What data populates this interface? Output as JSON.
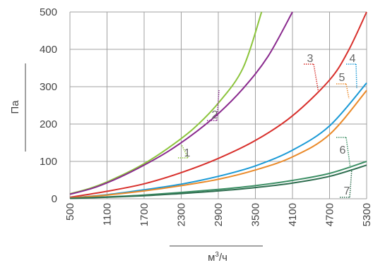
{
  "chart_data": {
    "type": "line",
    "title": "",
    "xlabel": "м³/ч",
    "xlabel_base": "м",
    "xlabel_sup": "3",
    "xlabel_suffix": "/ч",
    "ylabel": "Па",
    "xlim": [
      500,
      5300
    ],
    "ylim": [
      0,
      500
    ],
    "x_ticks": [
      "500",
      "1100",
      "1700",
      "2300",
      "2900",
      "3500",
      "4100",
      "4700",
      "5300"
    ],
    "y_ticks": [
      "0",
      "100",
      "200",
      "300",
      "400",
      "500"
    ],
    "grid": true,
    "colors": {
      "grid": "#a0a0a0",
      "axis_text": "#444444",
      "callout_text": "#666666"
    },
    "series": [
      {
        "name": "1",
        "color": "#8cc43c",
        "x": [
          500,
          900,
          1300,
          1700,
          2100,
          2500,
          2900,
          3300,
          3600
        ],
        "y": [
          13,
          32,
          60,
          94,
          137,
          188,
          256,
          350,
          500
        ]
      },
      {
        "name": "2",
        "color": "#8a2a8e",
        "x": [
          500,
          900,
          1300,
          1700,
          2100,
          2500,
          2900,
          3300,
          3700,
          4100
        ],
        "y": [
          12,
          30,
          57,
          90,
          128,
          174,
          228,
          295,
          380,
          500
        ]
      },
      {
        "name": "3",
        "color": "#d8302c",
        "x": [
          500,
          1100,
          1700,
          2300,
          2900,
          3500,
          4100,
          4700,
          5000,
          5300
        ],
        "y": [
          4,
          20,
          40,
          70,
          108,
          156,
          222,
          318,
          395,
          500
        ]
      },
      {
        "name": "4",
        "color": "#1b9ad6",
        "x": [
          500,
          1100,
          1700,
          2300,
          2900,
          3500,
          4100,
          4700,
          5300
        ],
        "y": [
          2,
          11,
          24,
          39,
          60,
          88,
          130,
          195,
          310
        ]
      },
      {
        "name": "5",
        "color": "#ea8a2a",
        "x": [
          500,
          1100,
          1700,
          2300,
          2900,
          3500,
          4100,
          4700,
          5300
        ],
        "y": [
          2,
          10,
          21,
          35,
          52,
          77,
          112,
          172,
          290
        ]
      },
      {
        "name": "6",
        "color": "#3d8f65",
        "x": [
          500,
          1100,
          1700,
          2300,
          2900,
          3500,
          4100,
          4700,
          5300
        ],
        "y": [
          1,
          5,
          10,
          17,
          25,
          35,
          49,
          68,
          100
        ]
      },
      {
        "name": "7",
        "color": "#2f6e50",
        "x": [
          500,
          1100,
          1700,
          2300,
          2900,
          3500,
          4100,
          4700,
          5300
        ],
        "y": [
          1,
          4,
          8,
          14,
          21,
          30,
          42,
          60,
          90
        ]
      }
    ]
  }
}
